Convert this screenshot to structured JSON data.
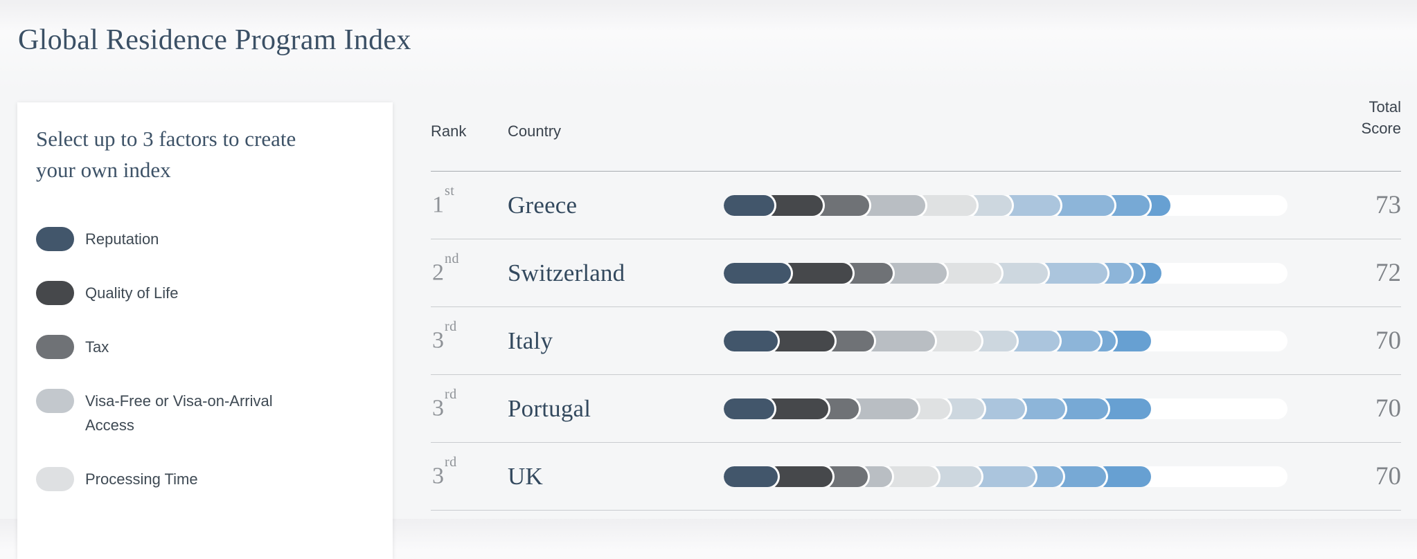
{
  "page": {
    "title": "Global Residence Program Index",
    "background_color": "#f5f6f7"
  },
  "factor_panel": {
    "heading": "Select up to 3 factors to create your own index",
    "factors": [
      {
        "label": "Reputation",
        "color": "#42566b"
      },
      {
        "label": "Quality of Life",
        "color": "#46484b"
      },
      {
        "label": "Tax",
        "color": "#6f7276"
      },
      {
        "label": "Visa-Free or Visa-on-Arrival Access",
        "color": "#c3c8cd"
      },
      {
        "label": "Processing Time",
        "color": "#dee0e2"
      }
    ]
  },
  "ranking_table": {
    "headers": {
      "rank": "Rank",
      "country": "Country",
      "total_score": "Total Score"
    },
    "segment_colors": [
      "#42566b",
      "#46484b",
      "#6f7276",
      "#b9bec3",
      "#dfe1e2",
      "#cdd7df",
      "#abc5dd",
      "#8db5d9",
      "#77a9d5",
      "#67a0d2"
    ],
    "rows": [
      {
        "rank": "1",
        "ordinal": "st",
        "country": "Greece",
        "total_score": "73",
        "segments": [
          9.0,
          8.6,
          8.2,
          10.0,
          9.0,
          6.3,
          8.6,
          9.6,
          6.3,
          3.7
        ]
      },
      {
        "rank": "2",
        "ordinal": "nd",
        "country": "Switzerland",
        "total_score": "72",
        "segments": [
          11.9,
          10.9,
          7.2,
          9.6,
          9.7,
          8.2,
          10.6,
          4.3,
          2.0,
          3.3
        ]
      },
      {
        "rank": "3",
        "ordinal": "rd",
        "country": "Italy",
        "total_score": "70",
        "segments": [
          9.6,
          10.0,
          7.0,
          10.9,
          8.2,
          6.3,
          7.6,
          7.2,
          2.7,
          6.3
        ]
      },
      {
        "rank": "3",
        "ordinal": "rd",
        "country": "Portugal",
        "total_score": "70",
        "segments": [
          9.0,
          9.6,
          5.3,
          10.6,
          5.7,
          6.0,
          7.2,
          7.2,
          7.6,
          7.6
        ]
      },
      {
        "rank": "3",
        "ordinal": "rd",
        "country": "UK",
        "total_score": "70",
        "segments": [
          9.6,
          9.7,
          6.3,
          4.3,
          8.2,
          7.6,
          9.6,
          4.9,
          7.6,
          8.0
        ]
      }
    ]
  }
}
